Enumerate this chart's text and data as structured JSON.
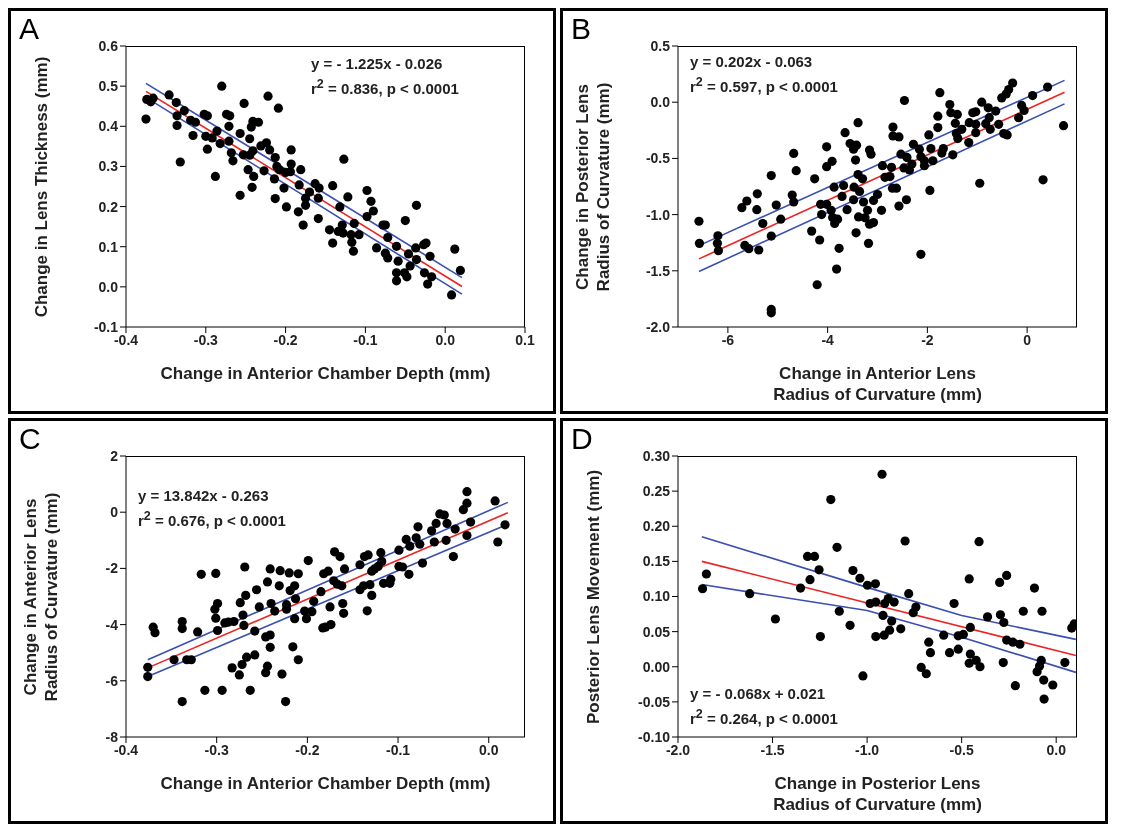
{
  "chart_data": [
    {
      "type": "scatter",
      "title": "A",
      "xlabel": "Change in Anterior Chamber Depth (mm)",
      "ylabel": "Change in Lens Thickness (mm)",
      "xlim": [
        -0.4,
        0.1
      ],
      "ylim": [
        -0.1,
        0.6
      ],
      "xticks": [
        -0.4,
        -0.3,
        -0.2,
        -0.1,
        {
          "value": 0,
          "label": "0.0"
        },
        0.1
      ],
      "yticks": [
        -0.1,
        {
          "value": 0,
          "label": "0.0"
        },
        0.1,
        0.2,
        0.3,
        0.4,
        0.5,
        0.6
      ],
      "annotations": [
        "y = - 1.225x - 0.026",
        "r$^{2}$ = 0.836, p < 0.0001"
      ],
      "series": [
        {
          "color": "#000000",
          "marker": "circle",
          "x": [
            -0.375,
            -0.374,
            -0.369,
            -0.366,
            -0.346,
            -0.337,
            -0.336,
            -0.336,
            -0.332,
            -0.327,
            -0.319,
            -0.316,
            -0.313,
            -0.302,
            -0.298,
            -0.3,
            -0.298,
            -0.292,
            -0.288,
            -0.286,
            -0.282,
            -0.28,
            -0.274,
            -0.271,
            -0.27,
            -0.271,
            -0.268,
            -0.266,
            -0.257,
            -0.257,
            -0.252,
            -0.253,
            -0.245,
            -0.245,
            -0.243,
            -0.241,
            -0.241,
            -0.247,
            -0.242,
            -0.24,
            -0.234,
            -0.231,
            -0.227,
            -0.224,
            -0.222,
            -0.22,
            -0.214,
            -0.213,
            -0.213,
            -0.211,
            -0.209,
            -0.208,
            -0.2,
            -0.199,
            -0.202,
            -0.193,
            -0.193,
            -0.194,
            -0.184,
            -0.183,
            -0.181,
            -0.178,
            -0.175,
            -0.175,
            -0.17,
            -0.163,
            -0.159,
            -0.159,
            -0.158,
            -0.145,
            -0.141,
            -0.141,
            -0.134,
            -0.132,
            -0.129,
            -0.127,
            -0.128,
            -0.122,
            -0.118,
            -0.117,
            -0.115,
            -0.114,
            -0.108,
            -0.098,
            -0.098,
            -0.093,
            -0.09,
            -0.086,
            -0.078,
            -0.075,
            -0.075,
            -0.072,
            -0.072,
            -0.061,
            -0.061,
            -0.061,
            -0.059,
            -0.05,
            -0.051,
            -0.048,
            -0.046,
            -0.044,
            -0.037,
            -0.036,
            -0.036,
            -0.027,
            -0.026,
            -0.022,
            -0.024,
            -0.019,
            -0.017,
            0.008,
            0.012,
            0.019
          ],
          "values": [
            0.418,
            0.467,
            0.461,
            0.47,
            0.478,
            0.459,
            0.426,
            0.402,
            0.311,
            0.439,
            0.415,
            0.377,
            0.41,
            0.43,
            0.426,
            0.375,
            0.343,
            0.371,
            0.275,
            0.388,
            0.357,
            0.5,
            0.43,
            0.4,
            0.426,
            0.363,
            0.334,
            0.314,
            0.382,
            0.228,
            0.457,
            0.329,
            0.369,
            0.328,
            0.398,
            0.412,
            0.339,
            0.292,
            0.248,
            0.275,
            0.41,
            0.351,
            0.289,
            0.359,
            0.475,
            0.341,
            0.269,
            0.322,
            0.22,
            0.3,
            0.445,
            0.292,
            0.285,
            0.199,
            0.246,
            0.306,
            0.341,
            0.287,
            0.187,
            0.254,
            0.292,
            0.154,
            0.221,
            0.203,
            0.236,
            0.257,
            0.17,
            0.221,
            0.246,
            0.142,
            0.109,
            0.252,
            0.138,
            0.199,
            0.154,
            0.318,
            0.134,
            0.224,
            0.13,
            0.111,
            0.089,
            0.158,
            0.13,
            0.24,
            0.175,
            0.213,
            0.189,
            0.097,
            0.154,
            0.154,
            0.084,
            0.072,
            0.123,
            0.035,
            0.015,
            0.101,
            0.064,
            0.165,
            0.035,
            0.025,
            0.082,
            0.052,
            0.097,
            0.203,
            0.068,
            0.105,
            0.035,
            0.007,
            0.109,
            0.076,
            0.025,
            -0.02,
            0.094,
            0.041
          ]
        },
        {
          "type": "line",
          "color": "#ee2222",
          "marker": "none",
          "x": [
            -0.375,
            0.021
          ],
          "values": [
            0.487,
            0.001
          ]
        },
        {
          "type": "line",
          "color": "#3a4fb0",
          "marker": "none",
          "x": [
            -0.375,
            0.021
          ],
          "values": [
            0.507,
            0.023
          ]
        },
        {
          "type": "line",
          "color": "#3a4fb0",
          "marker": "none",
          "x": [
            -0.375,
            0.021
          ],
          "values": [
            0.472,
            -0.018
          ]
        }
      ]
    },
    {
      "type": "scatter",
      "title": "B",
      "xlabel": "Change in Anterior Lens\nRadius of Curvature (mm)",
      "ylabel": "Change in Posterior Lens\nRadius of Curvature (mm)",
      "xlim": [
        -7,
        1
      ],
      "ylim": [
        -2,
        0.5
      ],
      "xticks": [
        -6,
        -4,
        -2,
        0
      ],
      "yticks": [
        {
          "value": -2,
          "label": "-2.0"
        },
        -1.5,
        {
          "value": -1,
          "label": "-1.0"
        },
        -0.5,
        {
          "value": 0,
          "label": "0.0"
        },
        0.5
      ],
      "annotations": [
        "y = 0.202x - 0.063",
        "r$^{2}$ = 0.597, p < 0.0001"
      ],
      "series": [
        {
          "color": "#000000",
          "marker": "circle",
          "x": [
            -6.58,
            -6.57,
            -6.2,
            -6.21,
            -6.19,
            -5.72,
            -5.62,
            -5.66,
            -5.58,
            -5.42,
            -5.41,
            -5.38,
            -5.3,
            -5.13,
            -5.13,
            -5.13,
            -5.13,
            -5.03,
            -4.94,
            -4.71,
            -4.68,
            -4.68,
            -4.63,
            -4.26,
            -4.32,
            -4.16,
            -4.21,
            -4.14,
            -4.12,
            -4.02,
            -4.02,
            -4.02,
            -3.91,
            -3.93,
            -3.9,
            -3.87,
            -3.86,
            -3.8,
            -3.82,
            -3.77,
            -3.71,
            -3.68,
            -3.65,
            -3.61,
            -3.55,
            -3.48,
            -3.44,
            -3.43,
            -3.48,
            -3.47,
            -3.42,
            -3.39,
            -3.39,
            -3.36,
            -3.38,
            -3.3,
            -3.28,
            -3.25,
            -3.2,
            -3.16,
            -3.18,
            -3.16,
            -3.13,
            -3.08,
            -3.08,
            -3.0,
            -2.92,
            -2.9,
            -2.85,
            -2.75,
            -2.72,
            -2.69,
            -2.69,
            -2.7,
            -2.62,
            -2.57,
            -2.57,
            -2.53,
            -2.47,
            -2.46,
            -2.42,
            -2.41,
            -2.36,
            -2.28,
            -2.31,
            -2.16,
            -2.13,
            -2.13,
            -2.06,
            -2.06,
            -1.97,
            -1.95,
            -1.93,
            -1.89,
            -1.79,
            -1.79,
            -1.75,
            -1.71,
            -1.68,
            -1.55,
            -1.53,
            -1.49,
            -1.44,
            -1.42,
            -1.4,
            -1.39,
            -1.31,
            -1.16,
            -1.17,
            -1.09,
            -1.03,
            -1.03,
            -1.03,
            -0.95,
            -0.91,
            -0.83,
            -0.78,
            -0.76,
            -0.74,
            -0.63,
            -0.57,
            -0.51,
            -0.47,
            -0.42,
            -0.4,
            -0.37,
            -0.29,
            -0.17,
            -0.11,
            -0.06,
            0.11,
            0.32,
            0.41,
            0.73
          ],
          "values": [
            -1.059,
            -1.256,
            -1.188,
            -1.256,
            -1.321,
            -0.938,
            -0.879,
            -1.274,
            -1.303,
            -0.956,
            -0.815,
            -1.315,
            -1.079,
            -0.653,
            -1.191,
            -1.844,
            -1.874,
            -0.915,
            -1.041,
            -0.826,
            -0.888,
            -0.456,
            -0.609,
            -0.682,
            -1.147,
            -1.226,
            -1.624,
            -0.909,
            -1.0,
            -0.397,
            -0.574,
            -0.909,
            -0.526,
            -0.962,
            -1.026,
            -0.756,
            -1.079,
            -1.041,
            -1.485,
            -1.3,
            -0.838,
            -0.741,
            -0.271,
            -0.956,
            -0.368,
            -0.418,
            -0.515,
            -1.162,
            -0.868,
            -0.756,
            -0.382,
            -0.182,
            -0.644,
            -0.794,
            -1.021,
            -0.682,
            -0.888,
            -1.029,
            -0.962,
            -0.426,
            -1.256,
            -1.085,
            -0.462,
            -0.874,
            -1.071,
            -0.821,
            -0.962,
            -0.565,
            -0.668,
            -0.662,
            -0.579,
            -0.221,
            -0.3,
            -0.765,
            -0.765,
            -0.924,
            -0.309,
            -0.462,
            -0.585,
            0.015,
            -0.868,
            -0.491,
            -0.603,
            -0.374,
            -0.55,
            -0.418,
            -1.353,
            -0.485,
            -0.565,
            -0.521,
            -0.291,
            -0.785,
            -0.412,
            -0.521,
            -0.124,
            -0.226,
            0.085,
            -0.453,
            -0.412,
            -0.021,
            -0.094,
            -0.468,
            -0.188,
            -0.279,
            -0.109,
            -0.324,
            -0.241,
            -0.182,
            -0.359,
            -0.094,
            -0.085,
            -0.197,
            -0.271,
            -0.721,
            0.0,
            -0.191,
            -0.05,
            -0.138,
            -0.241,
            -0.079,
            -0.197,
            0.038,
            -0.279,
            0.074,
            -0.291,
            0.112,
            0.171,
            -0.138,
            -0.029,
            -0.074,
            0.059,
            -0.691,
            0.135,
            -0.209
          ]
        },
        {
          "type": "line",
          "color": "#ee2222",
          "marker": "none",
          "x": [
            -6.58,
            0.75
          ],
          "values": [
            -1.394,
            0.088
          ]
        },
        {
          "type": "line",
          "color": "#3a4fb0",
          "marker": "none",
          "x": [
            -6.58,
            0.75
          ],
          "values": [
            -1.276,
            0.194
          ]
        },
        {
          "type": "line",
          "color": "#3a4fb0",
          "marker": "none",
          "x": [
            -6.58,
            0.75
          ],
          "values": [
            -1.506,
            -0.015
          ]
        }
      ]
    },
    {
      "type": "scatter",
      "title": "C",
      "xlabel": "Change in Anterior Chamber Depth (mm)",
      "ylabel": "Change in Anterior Lens\nRadius of Curvature (mm)",
      "xlim": [
        -0.4,
        0.04
      ],
      "ylim": [
        -8,
        2
      ],
      "xticks": [
        -0.4,
        -0.3,
        -0.2,
        -0.1,
        {
          "value": 0,
          "label": "0.0"
        }
      ],
      "yticks": [
        -8,
        -6,
        -4,
        -2,
        0,
        2
      ],
      "annotations": [
        "y = 13.842x - 0.263",
        "r$^{2}$ = 0.676, p < 0.0001"
      ],
      "series": [
        {
          "color": "#000000",
          "marker": "circle",
          "x": [
            -0.376,
            -0.376,
            -0.37,
            -0.368,
            -0.347,
            -0.338,
            -0.338,
            -0.338,
            -0.333,
            -0.328,
            -0.321,
            -0.317,
            -0.313,
            -0.302,
            -0.301,
            -0.301,
            -0.299,
            -0.299,
            -0.294,
            -0.291,
            -0.287,
            -0.281,
            -0.283,
            -0.274,
            -0.272,
            -0.271,
            -0.27,
            -0.269,
            -0.268,
            -0.275,
            -0.267,
            -0.263,
            -0.258,
            -0.258,
            -0.256,
            -0.253,
            -0.246,
            -0.246,
            -0.244,
            -0.244,
            -0.241,
            -0.241,
            -0.241,
            -0.24,
            -0.236,
            -0.231,
            -0.23,
            -0.228,
            -0.224,
            -0.223,
            -0.223,
            -0.22,
            -0.219,
            -0.216,
            -0.214,
            -0.214,
            -0.213,
            -0.21,
            -0.21,
            -0.203,
            -0.201,
            -0.199,
            -0.195,
            -0.193,
            -0.185,
            -0.183,
            -0.182,
            -0.18,
            -0.177,
            -0.175,
            -0.174,
            -0.171,
            -0.17,
            -0.167,
            -0.164,
            -0.162,
            -0.161,
            -0.16,
            -0.159,
            -0.142,
            -0.142,
            -0.138,
            -0.137,
            -0.134,
            -0.133,
            -0.131,
            -0.129,
            -0.129,
            -0.126,
            -0.122,
            -0.119,
            -0.118,
            -0.116,
            -0.109,
            -0.108,
            -0.099,
            -0.099,
            -0.095,
            -0.091,
            -0.088,
            -0.087,
            -0.08,
            -0.078,
            -0.076,
            -0.073,
            -0.063,
            -0.06,
            -0.058,
            -0.054,
            -0.049,
            -0.047,
            -0.046,
            -0.039,
            -0.037,
            -0.028,
            -0.024,
            -0.024,
            -0.024,
            -0.02,
            0.007,
            0.01,
            0.018
          ],
          "values": [
            -5.52,
            -5.85,
            -4.09,
            -4.29,
            -5.25,
            -3.89,
            -4.14,
            -6.74,
            -5.25,
            -5.25,
            -4.26,
            -2.21,
            -6.34,
            -3.45,
            -2.18,
            -3.77,
            -3.25,
            -4.21,
            -6.34,
            -3.94,
            -3.91,
            -3.89,
            -5.54,
            -3.22,
            -5.42,
            -3.66,
            -4.03,
            -1.95,
            -2.96,
            -5.79,
            -5.16,
            -6.34,
            -4.23,
            -5.08,
            -2.76,
            -3.37,
            -4.44,
            -5.71,
            -2.48,
            -5.48,
            -2.02,
            -4.81,
            -4.37,
            -3.25,
            -3.52,
            -2.62,
            -2.08,
            -5.76,
            -6.74,
            -3.29,
            -3.45,
            -2.16,
            -2.79,
            -4.79,
            -2.62,
            -3.79,
            -3.08,
            -5.25,
            -2.19,
            -3.52,
            -3.79,
            -1.72,
            -3.54,
            -3.17,
            -2.83,
            -4.12,
            -2.19,
            -4.09,
            -2.1,
            -3.37,
            -4.0,
            -2.44,
            -1.41,
            -2.56,
            -1.58,
            -2.62,
            -3.25,
            -3.6,
            -2.02,
            -1.87,
            -2.76,
            -2.62,
            -1.58,
            -3.51,
            -1.52,
            -2.58,
            -2.96,
            -2.1,
            -2.02,
            -1.93,
            -1.44,
            -1.75,
            -2.53,
            -2.53,
            -2.39,
            -1.35,
            -1.93,
            -1.95,
            -0.97,
            -2.21,
            -1.21,
            -0.91,
            -0.52,
            -1.14,
            -1.81,
            -0.66,
            -1.06,
            -0.4,
            -0.06,
            -0.1,
            -1.0,
            -0.4,
            -1.58,
            -0.6,
            0.09,
            0.32,
            0.73,
            -0.83,
            -0.35,
            0.4,
            -1.06,
            -0.45
          ]
        },
        {
          "type": "line",
          "color": "#ee2222",
          "marker": "none",
          "x": [
            -0.376,
            0.021
          ],
          "values": [
            -5.54,
            -0.02
          ]
        },
        {
          "type": "line",
          "color": "#3a4fb0",
          "marker": "none",
          "x": [
            -0.376,
            0.021
          ],
          "values": [
            -5.25,
            0.35
          ]
        },
        {
          "type": "line",
          "color": "#3a4fb0",
          "marker": "none",
          "x": [
            -0.376,
            0.021
          ],
          "values": [
            -5.85,
            -0.43
          ]
        }
      ]
    },
    {
      "type": "scatter",
      "title": "D",
      "xlabel": "Change in Posterior Lens\nRadius of Curvature (mm)",
      "ylabel": "Posterior Lens Movement (mm)",
      "xlim": [
        -2,
        0.11
      ],
      "ylim": [
        -0.1,
        0.3
      ],
      "xticks": [
        {
          "value": -2,
          "label": "-2.0"
        },
        -1.5,
        {
          "value": -1,
          "label": "-1.0"
        },
        -0.5,
        {
          "value": 0,
          "label": "0.0"
        }
      ],
      "yticks": [
        {
          "value": -0.1,
          "label": "-0.10"
        },
        -0.05,
        {
          "value": 0,
          "label": "0.00"
        },
        0.05,
        {
          "value": 0.1,
          "label": "0.10"
        },
        0.15,
        {
          "value": 0.2,
          "label": "0.20"
        },
        0.25,
        {
          "value": 0.3,
          "label": "0.30"
        }
      ],
      "annotations": [
        "y = - 0.068x + 0.021",
        "r$^{2}$ = 0.264, p < 0.0001"
      ],
      "series": [
        {
          "color": "#000000",
          "marker": "circle",
          "x": [
            -1.87,
            -1.85,
            -1.621,
            -1.485,
            -1.352,
            -1.315,
            -1.278,
            -1.302,
            -1.254,
            -1.247,
            -1.192,
            -1.159,
            -1.147,
            -1.09,
            -1.075,
            -1.038,
            -1.022,
            -0.998,
            -0.984,
            -0.956,
            -0.954,
            -0.954,
            -0.921,
            -0.916,
            -0.907,
            -0.91,
            -0.888,
            -0.881,
            -0.87,
            -0.857,
            -0.822,
            -0.799,
            -0.78,
            -0.756,
            -0.742,
            -0.714,
            -0.687,
            -0.674,
            -0.665,
            -0.595,
            -0.564,
            -0.54,
            -0.518,
            -0.518,
            -0.491,
            -0.46,
            -0.454,
            -0.454,
            -0.46,
            -0.423,
            -0.408,
            -0.403,
            -0.363,
            -0.299,
            -0.295,
            -0.277,
            -0.28,
            -0.262,
            -0.262,
            -0.229,
            -0.216,
            -0.192,
            -0.174,
            -0.115,
            -0.101,
            -0.088,
            -0.079,
            -0.075,
            -0.066,
            -0.064,
            -0.018,
            0.046,
            0.082,
            0.095
          ],
          "values": [
            0.111,
            0.132,
            0.104,
            0.068,
            0.112,
            0.157,
            0.157,
            0.124,
            0.138,
            0.043,
            0.238,
            0.17,
            0.079,
            0.059,
            0.137,
            0.126,
            -0.013,
            0.116,
            0.09,
            0.118,
            0.092,
            0.043,
            0.274,
            0.073,
            0.09,
            0.045,
            0.097,
            0.052,
            0.065,
            0.092,
            0.054,
            0.179,
            0.104,
            0.077,
            0.085,
            -0.001,
            -0.01,
            0.035,
            0.02,
            0.045,
            0.02,
            0.09,
            0.025,
            0.044,
            0.046,
            0.125,
            0.056,
            0.018,
            0.005,
            0.009,
            0.178,
            0.0,
            0.071,
            0.12,
            0.074,
            0.063,
            0.006,
            0.13,
            0.038,
            0.035,
            -0.027,
            0.032,
            0.079,
            0.112,
            -0.007,
            0.001,
            0.009,
            0.079,
            -0.019,
            -0.046,
            -0.026,
            0.006,
            0.055,
            0.061
          ]
        },
        {
          "type": "line",
          "color": "#ee2222",
          "marker": "none",
          "x": [
            -1.874,
            0.104
          ],
          "values": [
            0.15,
            0.016
          ]
        },
        {
          "type": "line",
          "color": "#3a4fb0",
          "marker": "none",
          "x": [
            -1.874,
            -1.0,
            -0.5,
            0.104
          ],
          "values": [
            0.185,
            0.113,
            0.073,
            0.039
          ]
        },
        {
          "type": "line",
          "color": "#3a4fb0",
          "marker": "none",
          "x": [
            -1.874,
            -1.0,
            -0.5,
            0.104
          ],
          "values": [
            0.117,
            0.08,
            0.042,
            -0.008
          ]
        }
      ]
    }
  ]
}
